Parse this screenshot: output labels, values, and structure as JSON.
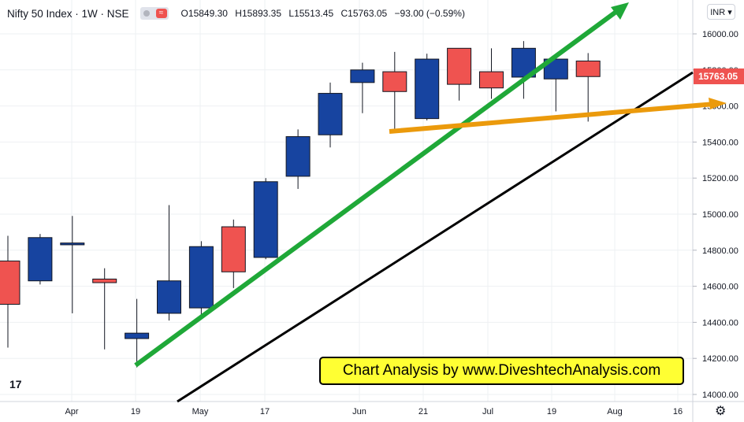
{
  "header": {
    "title": "Nifty 50 Index · 1W · NSE",
    "ohlc": [
      {
        "k": "O",
        "v": "15849.30"
      },
      {
        "k": "H",
        "v": "15893.35"
      },
      {
        "k": "L",
        "v": "15513.45"
      },
      {
        "k": "C",
        "v": "15763.05"
      },
      {
        "k": "",
        "v": "−93.00 (−0.59%)"
      }
    ]
  },
  "currency": "INR",
  "last_price_label": "15763.05",
  "banner_text": "Chart Analysis by www.DiveshtechAnalysis.com",
  "logo_text": "17",
  "gear_icon": "⚙",
  "colors": {
    "up": "#1744a0",
    "down": "#ef5350",
    "green_arrow": "#1fa838",
    "orange_arrow": "#eb9a0c",
    "trendline": "#000000",
    "grid": "#eef0f3"
  },
  "chart_data": {
    "type": "candlestick",
    "title": "Nifty 50 Index · 1W · NSE",
    "ylim": [
      13950,
      16150
    ],
    "y_ticks": [
      14000,
      14200,
      14400,
      14600,
      14800,
      15000,
      15200,
      15400,
      15600,
      15800,
      16000
    ],
    "x_ticks": [
      "Apr",
      "19",
      "May",
      "17",
      "Jun",
      "21",
      "Jul",
      "19",
      "Aug",
      "16"
    ],
    "candles": [
      {
        "o": 14740,
        "h": 14880,
        "l": 14260,
        "c": 14500
      },
      {
        "o": 14630,
        "h": 14890,
        "l": 14610,
        "c": 14870
      },
      {
        "o": 14830,
        "h": 14990,
        "l": 14450,
        "c": 14840
      },
      {
        "o": 14640,
        "h": 14700,
        "l": 14250,
        "c": 14620
      },
      {
        "o": 14310,
        "h": 14530,
        "l": 14150,
        "c": 14340
      },
      {
        "o": 14450,
        "h": 15050,
        "l": 14410,
        "c": 14630
      },
      {
        "o": 14480,
        "h": 14850,
        "l": 14420,
        "c": 14820
      },
      {
        "o": 14930,
        "h": 14970,
        "l": 14590,
        "c": 14680
      },
      {
        "o": 14760,
        "h": 15200,
        "l": 14750,
        "c": 15180
      },
      {
        "o": 15210,
        "h": 15470,
        "l": 15140,
        "c": 15430
      },
      {
        "o": 15440,
        "h": 15730,
        "l": 15370,
        "c": 15670
      },
      {
        "o": 15730,
        "h": 15840,
        "l": 15560,
        "c": 15800
      },
      {
        "o": 15790,
        "h": 15900,
        "l": 15460,
        "c": 15680
      },
      {
        "o": 15530,
        "h": 15890,
        "l": 15520,
        "c": 15860
      },
      {
        "o": 15920,
        "h": 15920,
        "l": 15630,
        "c": 15720
      },
      {
        "o": 15790,
        "h": 15920,
        "l": 15640,
        "c": 15700
      },
      {
        "o": 15760,
        "h": 15960,
        "l": 15640,
        "c": 15920
      },
      {
        "o": 15750,
        "h": 15890,
        "l": 15570,
        "c": 15860
      },
      {
        "o": 15849.3,
        "h": 15893.35,
        "l": 15513.45,
        "c": 15763.05
      }
    ]
  }
}
